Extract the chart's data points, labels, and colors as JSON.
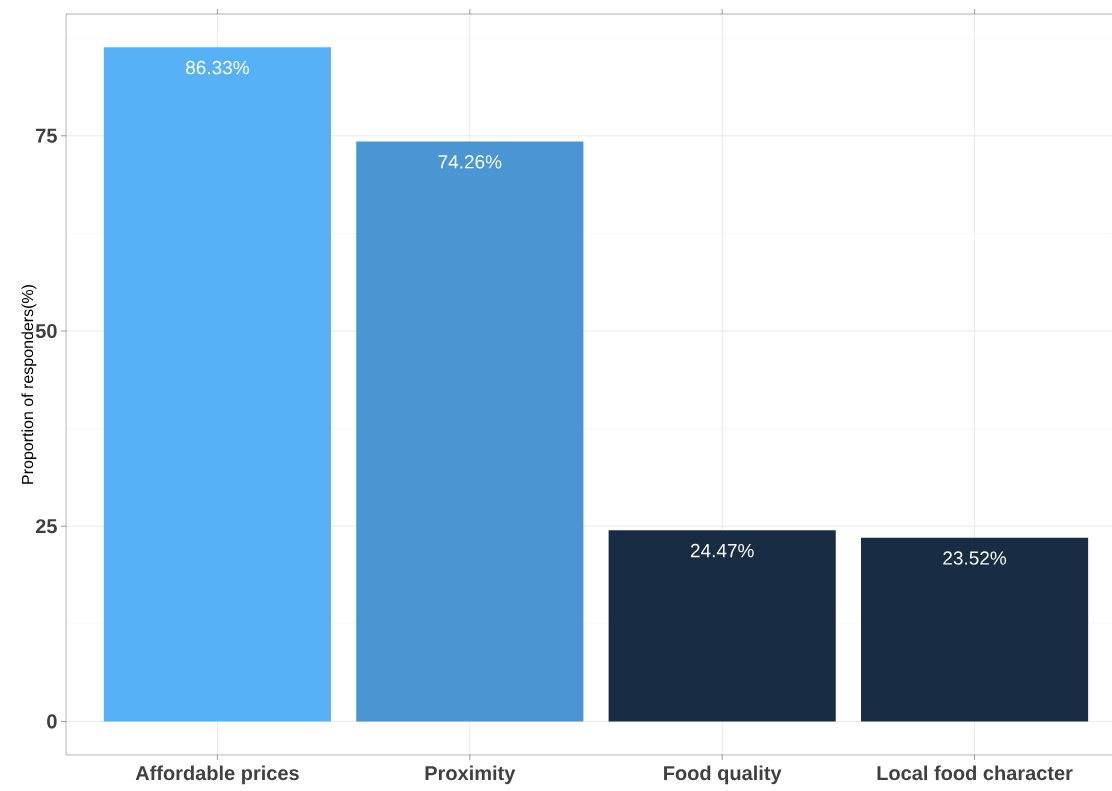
{
  "chart_data": {
    "type": "bar",
    "ylabel": "Proportion of responders(%)",
    "categories": [
      "Affordable prices",
      "Proximity",
      "Food quality",
      "Local food character"
    ],
    "values": [
      86.33,
      74.26,
      24.47,
      23.52
    ],
    "colors": [
      "#56b1f7",
      "#4a95d2",
      "#182d44",
      "#182d44"
    ],
    "value_labels": [
      "86.33%",
      "74.26%",
      "24.47%",
      "23.52%"
    ],
    "ylim": [
      -4.3,
      90.6
    ],
    "yticks": [
      0,
      25,
      50,
      75
    ],
    "grid": true
  }
}
